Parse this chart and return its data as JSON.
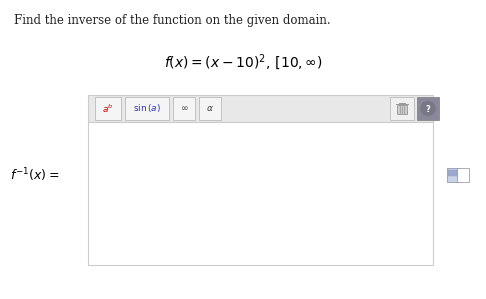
{
  "page_bg": "#ffffff",
  "instruction_text": "Find the inverse of the function on the given domain.",
  "instruction_fontsize": 8.5,
  "formula_text": "$f(x) = (x - 10)^2, \\,[10, \\infty)$",
  "formula_fontsize": 10,
  "toolbar_bg": "#e8e8e8",
  "toolbar_border": "#cccccc",
  "input_box_bg": "#ffffff",
  "input_box_border": "#cccccc",
  "inverse_label_text": "$f^{-1}(x) =$",
  "inverse_label_fontsize": 9,
  "btn_ab_text": "$a^b$",
  "btn_sin_text": "$\\mathrm{sin}\\,(a)$",
  "btn_inf_text": "$\\infty$",
  "btn_alpha_text": "$\\alpha$",
  "btn_text_colors": [
    "#cc0000",
    "#3333bb",
    "#444444",
    "#444444"
  ],
  "btn_fontsize": 6.5
}
